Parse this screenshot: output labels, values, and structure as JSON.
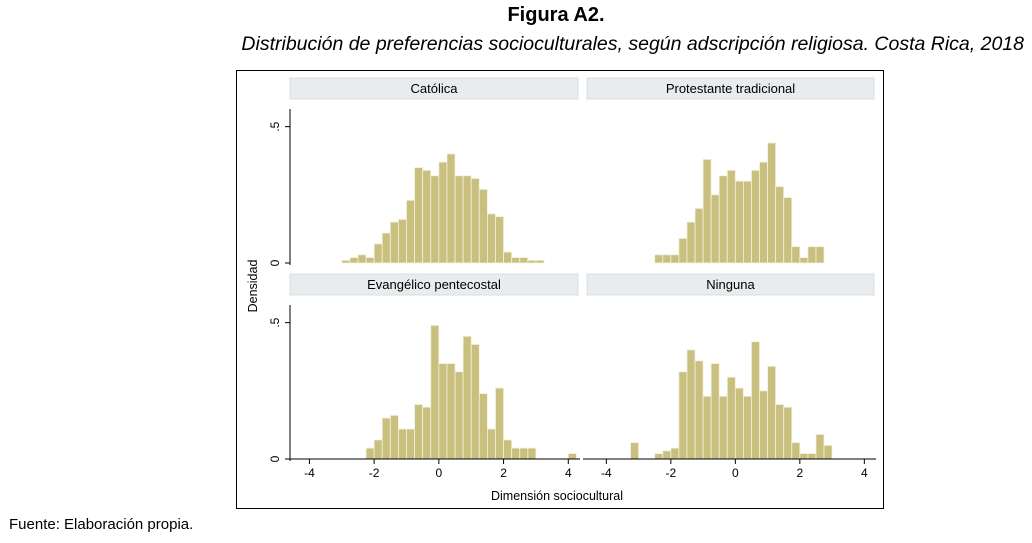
{
  "figure": {
    "title": "Figura A2.",
    "subtitle": "Distribución de preferencias socioculturales, según adscripción religiosa. Costa Rica, 2018",
    "source": "Fuente: Elaboración propia."
  },
  "chart_data": {
    "type": "bar",
    "layout": "2x2 small-multiple histograms",
    "xlabel": "Dimensión sociocultural",
    "ylabel": "Densidad",
    "xlim": [
      -4.6,
      4.3
    ],
    "ylim": [
      0,
      0.55
    ],
    "x_ticks": [
      "-4",
      "-2",
      "0",
      "2",
      "4"
    ],
    "y_ticks": [
      "0",
      ".5"
    ],
    "bar_color": "#c9c07f",
    "bar_edge_color": "#f4f1de",
    "panel_header_color": "#e8ecef",
    "panels": [
      {
        "name": "Católica",
        "bin_edges": [
          -3.0,
          -2.75,
          -2.5,
          -2.25,
          -2.0,
          -1.75,
          -1.5,
          -1.25,
          -1.0,
          -0.75,
          -0.5,
          -0.25,
          0.0,
          0.25,
          0.5,
          0.75,
          1.0,
          1.25,
          1.5,
          1.75,
          2.0,
          2.25,
          2.5,
          2.75,
          3.0,
          3.25
        ],
        "values": [
          0.01,
          0.02,
          0.03,
          0.02,
          0.07,
          0.11,
          0.15,
          0.16,
          0.23,
          0.35,
          0.34,
          0.32,
          0.37,
          0.4,
          0.32,
          0.32,
          0.31,
          0.27,
          0.18,
          0.17,
          0.04,
          0.02,
          0.02,
          0.01,
          0.01
        ]
      },
      {
        "name": "Protestante tradicional",
        "bin_edges": [
          -2.5,
          -2.25,
          -2.0,
          -1.75,
          -1.5,
          -1.25,
          -1.0,
          -0.75,
          -0.5,
          -0.25,
          0.0,
          0.25,
          0.5,
          0.75,
          1.0,
          1.25,
          1.5,
          1.75,
          2.0,
          2.25,
          2.5,
          2.75
        ],
        "values": [
          0.03,
          0.03,
          0.03,
          0.09,
          0.15,
          0.2,
          0.38,
          0.25,
          0.32,
          0.34,
          0.3,
          0.3,
          0.34,
          0.37,
          0.44,
          0.28,
          0.24,
          0.06,
          0.02,
          0.06,
          0.06
        ]
      },
      {
        "name": "Evangélico pentecostal",
        "bin_edges": [
          -2.25,
          -2.0,
          -1.75,
          -1.5,
          -1.25,
          -1.0,
          -0.75,
          -0.5,
          -0.25,
          0.0,
          0.25,
          0.5,
          0.75,
          1.0,
          1.25,
          1.5,
          1.75,
          2.0,
          2.25,
          2.5,
          2.75,
          3.0,
          3.25,
          3.5,
          3.75,
          4.0,
          4.25
        ],
        "values": [
          0.04,
          0.07,
          0.15,
          0.16,
          0.11,
          0.11,
          0.2,
          0.19,
          0.49,
          0.35,
          0.35,
          0.32,
          0.45,
          0.42,
          0.24,
          0.11,
          0.26,
          0.07,
          0.04,
          0.04,
          0.04,
          0.0,
          0.0,
          0.0,
          0.0,
          0.02
        ]
      },
      {
        "name": "Ninguna",
        "bin_edges": [
          -3.25,
          -3.0,
          -2.75,
          -2.5,
          -2.25,
          -2.0,
          -1.75,
          -1.5,
          -1.25,
          -1.0,
          -0.75,
          -0.5,
          -0.25,
          0.0,
          0.25,
          0.5,
          0.75,
          1.0,
          1.25,
          1.5,
          1.75,
          2.0,
          2.25,
          2.5,
          2.75,
          3.0
        ],
        "values": [
          0.06,
          0.0,
          0.0,
          0.02,
          0.03,
          0.04,
          0.32,
          0.4,
          0.36,
          0.23,
          0.35,
          0.23,
          0.3,
          0.26,
          0.23,
          0.43,
          0.25,
          0.34,
          0.2,
          0.19,
          0.06,
          0.02,
          0.02,
          0.09,
          0.05
        ]
      }
    ]
  }
}
